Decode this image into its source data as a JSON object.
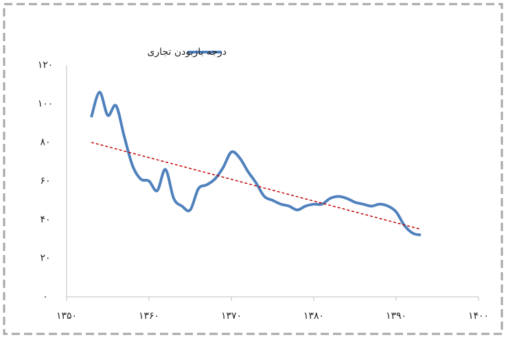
{
  "chart_data": {
    "type": "line",
    "x": [
      1353,
      1354,
      1355,
      1356,
      1357,
      1358,
      1359,
      1360,
      1361,
      1362,
      1363,
      1364,
      1365,
      1366,
      1367,
      1368,
      1369,
      1370,
      1371,
      1372,
      1373,
      1374,
      1375,
      1376,
      1377,
      1378,
      1379,
      1380,
      1381,
      1382,
      1383,
      1384,
      1385,
      1386,
      1387,
      1388,
      1389,
      1390,
      1391,
      1392,
      1393
    ],
    "series": [
      {
        "name": "درجه بازبودن تجاری",
        "color": "#4f81bd",
        "values": [
          93,
          106,
          94,
          99,
          83,
          68,
          61,
          60,
          55,
          66,
          51,
          47,
          45,
          56,
          58,
          61,
          67,
          75,
          72,
          65,
          59,
          52,
          50,
          48,
          47,
          45,
          47,
          48,
          48,
          51,
          52,
          51,
          49,
          48,
          47,
          48,
          47,
          44,
          37,
          33,
          32
        ]
      }
    ],
    "trend": {
      "x": [
        1353,
        1393
      ],
      "values": [
        80,
        35
      ],
      "color": "#c00000"
    },
    "xlim": [
      1350,
      1400
    ],
    "xticks": [
      {
        "value": 1350,
        "label": "۱۳۵۰"
      },
      {
        "value": 1360,
        "label": "۱۳۶۰"
      },
      {
        "value": 1370,
        "label": "۱۳۷۰"
      },
      {
        "value": 1380,
        "label": "۱۳۸۰"
      },
      {
        "value": 1390,
        "label": "۱۳۹۰"
      },
      {
        "value": 1400,
        "label": "۱۴۰۰"
      }
    ],
    "ylim": [
      0,
      120
    ],
    "yticks": [
      {
        "value": 0,
        "label": "۰"
      },
      {
        "value": 20,
        "label": "۲۰"
      },
      {
        "value": 40,
        "label": "۴۰"
      },
      {
        "value": 60,
        "label": "۶۰"
      },
      {
        "value": 80,
        "label": "۸۰"
      },
      {
        "value": 100,
        "label": "۱۰۰"
      },
      {
        "value": 120,
        "label": "۱۲۰"
      }
    ],
    "legend": "top"
  }
}
